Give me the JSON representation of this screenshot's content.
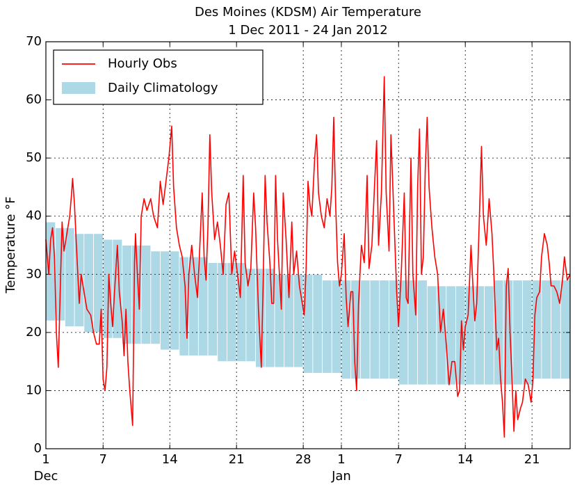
{
  "chart_data": {
    "type": "line",
    "title": "Des Moines (KDSM) Air Temperature",
    "subtitle": "1 Dec 2011 - 24 Jan 2012",
    "y_label": "Temperature °F",
    "xlim": [
      0,
      55
    ],
    "ylim": [
      0,
      70
    ],
    "yticks": [
      0,
      10,
      20,
      30,
      40,
      50,
      60,
      70
    ],
    "xticks": [
      {
        "value": 0,
        "label": "1"
      },
      {
        "value": 6,
        "label": "7"
      },
      {
        "value": 13,
        "label": "14"
      },
      {
        "value": 20,
        "label": "21"
      },
      {
        "value": 27,
        "label": "28"
      },
      {
        "value": 31,
        "label": "1"
      },
      {
        "value": 37,
        "label": "7"
      },
      {
        "value": 44,
        "label": "14"
      },
      {
        "value": 51,
        "label": "21"
      }
    ],
    "month_labels": [
      {
        "value": 0,
        "label": "Dec"
      },
      {
        "value": 31,
        "label": "Jan"
      }
    ],
    "grid": true,
    "legend": "upper left",
    "climatology": {
      "name": "Daily Climatology",
      "color": "#add8e6",
      "high": [
        39,
        38,
        38,
        37,
        37,
        37,
        36,
        36,
        35,
        35,
        35,
        34,
        34,
        34,
        33,
        33,
        33,
        32,
        32,
        32,
        32,
        31,
        31,
        31,
        30,
        30,
        30,
        30,
        30,
        29,
        29,
        29,
        29,
        29,
        29,
        29,
        29,
        29,
        29,
        29,
        28,
        28,
        28,
        28,
        28,
        28,
        28,
        29,
        29,
        29,
        29,
        29,
        29,
        29,
        29
      ],
      "low": [
        22,
        22,
        21,
        21,
        20,
        20,
        19,
        19,
        18,
        18,
        18,
        18,
        17,
        17,
        16,
        16,
        16,
        16,
        15,
        15,
        15,
        15,
        14,
        14,
        14,
        14,
        14,
        13,
        13,
        13,
        13,
        12,
        12,
        12,
        12,
        12,
        12,
        11,
        11,
        11,
        11,
        11,
        11,
        11,
        11,
        11,
        11,
        11,
        11,
        11,
        11,
        12,
        12,
        12,
        12
      ]
    },
    "series": [
      {
        "name": "Hourly Obs",
        "color": "#ff0000",
        "x": [
          0.0,
          0.3,
          0.5,
          0.7,
          0.9,
          1.1,
          1.3,
          1.5,
          1.7,
          1.9,
          2.2,
          2.5,
          2.7,
          2.8,
          3.0,
          3.2,
          3.5,
          3.7,
          4.0,
          4.3,
          4.7,
          5.0,
          5.3,
          5.6,
          5.8,
          6.0,
          6.2,
          6.4,
          6.6,
          6.8,
          7.0,
          7.2,
          7.5,
          7.7,
          8.0,
          8.2,
          8.4,
          8.6,
          8.8,
          9.0,
          9.1,
          9.3,
          9.4,
          9.6,
          9.8,
          10.0,
          10.3,
          10.6,
          11.0,
          11.3,
          11.7,
          12.0,
          12.3,
          12.6,
          12.9,
          13.2,
          13.4,
          13.7,
          14.0,
          14.3,
          14.6,
          14.8,
          15.0,
          15.3,
          15.6,
          15.9,
          16.1,
          16.4,
          16.6,
          16.8,
          17.0,
          17.2,
          17.4,
          17.7,
          18.0,
          18.3,
          18.6,
          18.9,
          19.2,
          19.5,
          19.8,
          20.1,
          20.4,
          20.7,
          20.9,
          21.2,
          21.5,
          21.8,
          22.0,
          22.3,
          22.6,
          22.8,
          23.0,
          23.2,
          23.5,
          23.7,
          23.9,
          24.1,
          24.3,
          24.5,
          24.7,
          24.9,
          25.2,
          25.5,
          25.8,
          26.0,
          26.3,
          26.6,
          26.9,
          27.1,
          27.3,
          27.5,
          27.7,
          27.9,
          28.2,
          28.4,
          28.6,
          28.9,
          29.2,
          29.5,
          29.8,
          30.0,
          30.2,
          30.4,
          30.6,
          30.8,
          31.0,
          31.3,
          31.5,
          31.7,
          32.0,
          32.2,
          32.4,
          32.6,
          32.8,
          33.1,
          33.4,
          33.7,
          33.9,
          34.2,
          34.5,
          34.7,
          34.9,
          35.2,
          35.5,
          35.7,
          36.0,
          36.2,
          36.4,
          36.6,
          36.8,
          37.0,
          37.3,
          37.6,
          37.8,
          38.0,
          38.3,
          38.5,
          38.8,
          39.0,
          39.2,
          39.4,
          39.6,
          39.8,
          40.0,
          40.2,
          40.5,
          40.8,
          41.1,
          41.4,
          41.7,
          42.0,
          42.3,
          42.6,
          42.9,
          43.2,
          43.4,
          43.6,
          43.8,
          44.0,
          44.3,
          44.6,
          44.8,
          45.0,
          45.2,
          45.5,
          45.7,
          45.9,
          46.2,
          46.5,
          46.8,
          47.0,
          47.3,
          47.5,
          47.7,
          47.9,
          48.1,
          48.3,
          48.5,
          48.7,
          48.9,
          49.1,
          49.3,
          49.5,
          49.8,
          50.0,
          50.3,
          50.6,
          50.9,
          51.1,
          51.3,
          51.5,
          51.8,
          52.0,
          52.3,
          52.6,
          52.8,
          53.0,
          53.3,
          53.6,
          53.9,
          54.2,
          54.4,
          54.7,
          55.0
        ],
        "values": [
          36,
          30,
          36,
          38,
          33,
          20,
          14,
          27,
          39,
          34,
          37,
          40,
          44,
          46.5,
          42,
          35,
          25,
          30,
          27,
          24,
          23,
          20,
          18,
          18,
          24,
          12,
          10,
          14,
          30,
          25,
          21,
          27,
          35,
          27,
          22,
          16,
          24,
          15,
          10,
          6,
          4,
          32,
          37,
          30,
          24,
          40,
          43,
          41,
          43,
          40,
          38,
          46,
          42,
          46,
          50,
          55.5,
          45,
          38,
          35,
          33,
          28,
          19,
          30,
          35,
          30,
          26,
          33,
          44,
          33,
          29,
          38,
          54,
          44,
          36,
          39,
          35,
          30,
          42,
          44,
          30,
          34,
          30,
          26,
          47,
          32,
          28,
          31,
          44,
          38,
          24,
          14,
          29,
          47,
          39,
          32,
          25,
          25,
          47,
          36,
          30,
          24,
          44,
          36,
          26,
          39,
          30,
          34,
          28,
          25,
          23,
          31,
          46,
          42,
          40,
          50,
          54,
          44,
          40,
          38,
          43,
          40,
          45,
          57,
          42,
          32,
          28,
          30,
          37,
          26,
          21,
          27,
          27,
          15,
          10,
          25,
          35,
          32,
          47,
          31,
          35,
          46,
          53,
          35,
          44,
          64,
          44,
          34,
          54,
          45,
          36,
          27,
          21,
          31,
          44,
          26,
          25,
          50,
          30,
          23,
          45,
          55,
          30,
          33,
          48,
          57,
          45,
          38,
          33,
          30,
          20,
          24,
          18,
          11,
          15,
          15,
          9,
          10,
          22,
          17,
          21,
          23,
          35,
          28,
          22,
          25,
          41,
          52,
          40,
          35,
          43,
          37,
          30,
          17,
          19,
          12,
          8,
          2,
          28,
          31,
          20,
          12,
          3,
          10,
          5,
          7,
          8,
          12,
          11,
          8,
          12,
          23,
          26,
          27,
          33,
          37,
          35,
          32,
          28,
          28,
          27,
          25,
          29,
          33,
          29,
          30
        ]
      }
    ]
  }
}
